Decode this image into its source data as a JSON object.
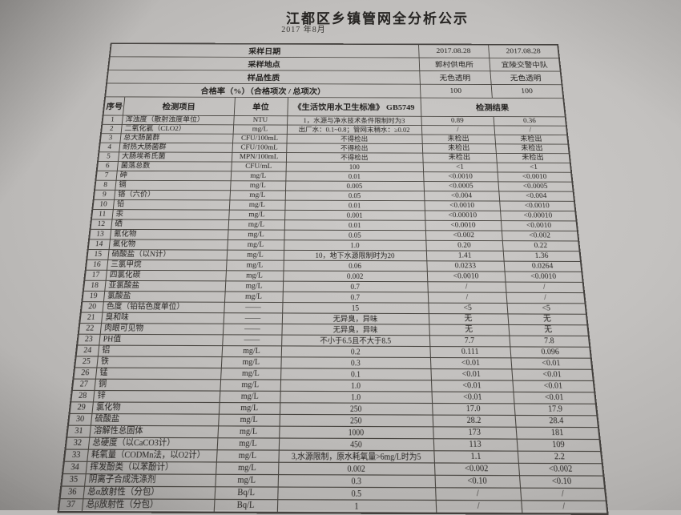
{
  "page": {
    "title": "江都区乡镇管网全分析公示",
    "subtitle": "2017 年8月"
  },
  "info_rows": [
    {
      "label": "采样日期",
      "values": [
        "2017.08.28",
        "2017.08.28"
      ]
    },
    {
      "label": "采样地点",
      "values": [
        "郭村供电所",
        "宜陵交警中队"
      ]
    },
    {
      "label": "样品性质",
      "values": [
        "无色透明",
        "无色透明"
      ]
    },
    {
      "label": "合格率（%）（合格项次 / 总项次）",
      "values": [
        "100",
        "100"
      ]
    }
  ],
  "columns": {
    "index": "序号",
    "item": "检测项目",
    "unit": "单位",
    "standard": "《生活饮用水卫生标准》 GB5749",
    "result": "检测结果"
  },
  "rows": [
    [
      "1",
      "浑浊度（散射浊度单位）",
      "NTU",
      "1，水源与净水技术条件限制时为3",
      "0.89",
      "0.36"
    ],
    [
      "2",
      "二氧化氯（CLO2）",
      "mg/L",
      "出厂水：0.1~0.8；管网末稍水：≥0.02",
      "/",
      "/"
    ],
    [
      "3",
      "总大肠菌群",
      "CFU/100mL",
      "不得检出",
      "未检出",
      "未检出"
    ],
    [
      "4",
      "耐热大肠菌群",
      "CFU/100mL",
      "不得检出",
      "未检出",
      "未检出"
    ],
    [
      "5",
      "大肠埃希氏菌",
      "MPN/100mL",
      "不得检出",
      "未检出",
      "未检出"
    ],
    [
      "6",
      "菌落总数",
      "CFU/mL",
      "100",
      "<1",
      "<1"
    ],
    [
      "7",
      "砷",
      "mg/L",
      "0.01",
      "<0.0010",
      "<0.0010"
    ],
    [
      "8",
      "镉",
      "mg/L",
      "0.005",
      "<0.0005",
      "<0.0005"
    ],
    [
      "9",
      "铬（六价）",
      "mg/L",
      "0.05",
      "<0.004",
      "<0.004"
    ],
    [
      "10",
      "铅",
      "mg/L",
      "0.01",
      "<0.0010",
      "<0.0010"
    ],
    [
      "11",
      "汞",
      "mg/L",
      "0.001",
      "<0.00010",
      "<0.00010"
    ],
    [
      "12",
      "硒",
      "mg/L",
      "0.01",
      "<0.0010",
      "<0.0010"
    ],
    [
      "13",
      "氰化物",
      "mg/L",
      "0.05",
      "<0.002",
      "<0.002"
    ],
    [
      "14",
      "氟化物",
      "mg/L",
      "1.0",
      "0.20",
      "0.22"
    ],
    [
      "15",
      "硝酸盐（以N计）",
      "mg/L",
      "10，地下水源限制时为20",
      "1.41",
      "1.36"
    ],
    [
      "16",
      "三氯甲烷",
      "mg/L",
      "0.06",
      "0.0233",
      "0.0264"
    ],
    [
      "17",
      "四氯化碳",
      "mg/L",
      "0.002",
      "<0.0010",
      "<0.0010"
    ],
    [
      "18",
      "亚氯酸盐",
      "mg/L",
      "0.7",
      "/",
      "/"
    ],
    [
      "19",
      "氯酸盐",
      "mg/L",
      "0.7",
      "/",
      "/"
    ],
    [
      "20",
      "色度（铂钴色度单位）",
      "——",
      "15",
      "<5",
      "<5"
    ],
    [
      "21",
      "臭和味",
      "——",
      "无异臭，异味",
      "无",
      "无"
    ],
    [
      "22",
      "肉眼可见物",
      "——",
      "无异臭，异味",
      "无",
      "无"
    ],
    [
      "23",
      "PH值",
      "——",
      "不小于6.5且不大于8.5",
      "7.7",
      "7.8"
    ],
    [
      "24",
      "铝",
      "mg/L",
      "0.2",
      "0.111",
      "0.096"
    ],
    [
      "25",
      "铁",
      "mg/L",
      "0.3",
      "<0.01",
      "<0.01"
    ],
    [
      "26",
      "锰",
      "mg/L",
      "0.1",
      "<0.01",
      "<0.01"
    ],
    [
      "27",
      "铜",
      "mg/L",
      "1.0",
      "<0.01",
      "<0.01"
    ],
    [
      "28",
      "锌",
      "mg/L",
      "1.0",
      "<0.01",
      "<0.01"
    ],
    [
      "29",
      "氯化物",
      "mg/L",
      "250",
      "17.0",
      "17.9"
    ],
    [
      "30",
      "硫酸盐",
      "mg/L",
      "250",
      "28.2",
      "28.4"
    ],
    [
      "31",
      "溶解性总固体",
      "mg/L",
      "1000",
      "173",
      "181"
    ],
    [
      "32",
      "总硬度（以CaCO3计）",
      "mg/L",
      "450",
      "113",
      "109"
    ],
    [
      "33",
      "耗氧量（CODMn法，以O2计）",
      "mg/L",
      "3,水源限制，原水耗氧量>6mg/L时为5",
      "1.1",
      "2.2"
    ],
    [
      "34",
      "挥发酚类（以苯酚计）",
      "mg/L",
      "0.002",
      "<0.002",
      "<0.002"
    ],
    [
      "35",
      "阴离子合成洗涤剂",
      "mg/L",
      "0.3",
      "<0.10",
      "<0.10"
    ],
    [
      "36",
      "总α放射性（分包）",
      "Bq/L",
      "0.5",
      "/",
      "/"
    ],
    [
      "37",
      "总β放射性（分包）",
      "Bq/L",
      "1",
      "/",
      "/"
    ]
  ],
  "colors": {
    "paper": "#c3c1bf",
    "line": "#47443f",
    "ink": "#211f1d"
  }
}
